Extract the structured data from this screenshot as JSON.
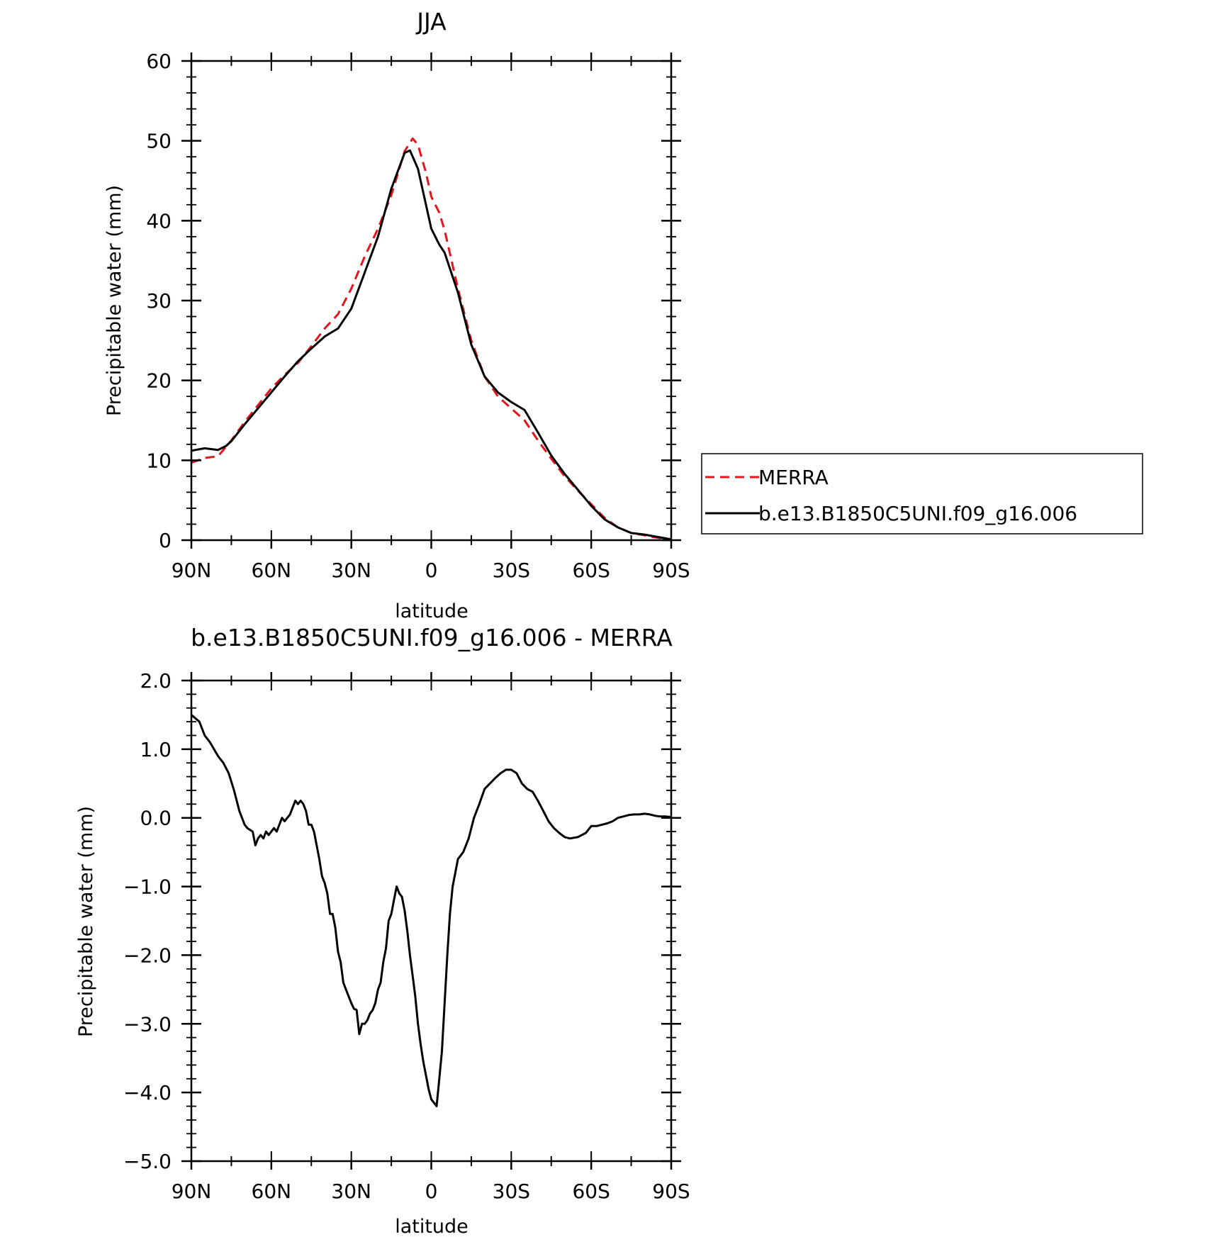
{
  "chart_data": [
    {
      "type": "line",
      "title": "JJA",
      "xlabel": "latitude",
      "ylabel": "Precipitable water (mm)",
      "x_ticks": [
        90,
        60,
        30,
        0,
        -30,
        -60,
        -90
      ],
      "x_tick_labels": [
        "90N",
        "60N",
        "30N",
        "0",
        "30S",
        "60S",
        "90S"
      ],
      "xlim": [
        90,
        -90
      ],
      "ylim": [
        0,
        60
      ],
      "y_ticks": [
        0,
        10,
        20,
        30,
        40,
        50,
        60
      ],
      "y_tick_labels": [
        "0",
        "10",
        "20",
        "30",
        "40",
        "50",
        "60"
      ],
      "grid": false,
      "legend": "right",
      "series": [
        {
          "name": "MERRA",
          "color": "#e8141b",
          "style": "dashed",
          "x": [
            90,
            85,
            80,
            75,
            70,
            65,
            60,
            55,
            50,
            45,
            40,
            35,
            30,
            25,
            20,
            15,
            10,
            7,
            5,
            2,
            0,
            -3,
            -5,
            -10,
            -15,
            -20,
            -25,
            -30,
            -35,
            -40,
            -45,
            -50,
            -55,
            -60,
            -65,
            -70,
            -75,
            -80,
            -85,
            -90
          ],
          "values": [
            9.7,
            10.3,
            10.5,
            12.5,
            14.8,
            16.9,
            19.0,
            20.7,
            22.2,
            24.3,
            26.5,
            28.3,
            31.5,
            35.5,
            39.0,
            43.2,
            48.7,
            50.3,
            49.5,
            46.0,
            43.0,
            41.0,
            38.8,
            31.5,
            25.0,
            20.5,
            18.0,
            16.5,
            15.0,
            12.5,
            10.2,
            8.0,
            6.2,
            4.5,
            2.8,
            1.6,
            0.9,
            0.6,
            0.3,
            0.0
          ]
        },
        {
          "name": "b.e13.B1850C5UNI.f09_g16.006",
          "color": "#000000",
          "style": "solid",
          "x": [
            90,
            85,
            80,
            77,
            75,
            70,
            65,
            60,
            55,
            50,
            45,
            40,
            35,
            30,
            25,
            20,
            15,
            10,
            8,
            5,
            2,
            0,
            -3,
            -5,
            -10,
            -15,
            -20,
            -25,
            -30,
            -35,
            -40,
            -45,
            -50,
            -55,
            -60,
            -65,
            -70,
            -75,
            -80,
            -85,
            -90
          ],
          "values": [
            11.2,
            11.5,
            11.3,
            11.8,
            12.4,
            14.5,
            16.5,
            18.5,
            20.5,
            22.4,
            24.0,
            25.5,
            26.5,
            29.0,
            33.5,
            38.0,
            44.0,
            48.5,
            48.8,
            46.5,
            42.0,
            39.0,
            37.0,
            36.0,
            31.0,
            24.5,
            20.5,
            18.5,
            17.3,
            16.3,
            13.5,
            10.6,
            8.3,
            6.3,
            4.3,
            2.6,
            1.6,
            0.9,
            0.7,
            0.4,
            0.1
          ]
        }
      ]
    },
    {
      "type": "line",
      "title": "b.e13.B1850C5UNI.f09_g16.006 - MERRA",
      "xlabel": "latitude",
      "ylabel": "Precipitable water (mm)",
      "x_ticks": [
        90,
        60,
        30,
        0,
        -30,
        -60,
        -90
      ],
      "x_tick_labels": [
        "90N",
        "60N",
        "30N",
        "0",
        "30S",
        "60S",
        "90S"
      ],
      "xlim": [
        90,
        -90
      ],
      "ylim": [
        -5,
        2
      ],
      "y_ticks": [
        2,
        1,
        0,
        -1,
        -2,
        -3,
        -4,
        -5
      ],
      "y_tick_labels": [
        "2.0",
        "1.0",
        "0.0",
        "−1.0",
        "−2.0",
        "−3.0",
        "−4.0",
        "−5.0"
      ],
      "grid": false,
      "series": [
        {
          "color": "#000000",
          "style": "solid",
          "x": [
            90,
            87,
            85,
            83,
            80,
            78,
            76,
            74,
            72,
            70,
            69,
            67,
            66,
            65,
            64,
            63,
            62,
            61,
            60,
            59,
            58,
            57,
            56,
            55,
            54,
            53,
            52,
            51,
            50,
            49,
            48,
            47,
            46,
            45,
            44,
            43,
            42,
            41,
            40,
            39,
            38,
            37,
            36,
            35,
            34,
            33,
            32,
            31,
            30,
            29,
            28,
            27,
            26,
            25,
            24,
            23,
            22,
            21,
            20,
            19,
            18,
            17,
            16,
            15,
            14,
            13,
            12,
            11,
            10,
            9,
            8,
            7,
            6,
            5,
            4,
            3,
            2,
            1,
            0,
            -1,
            -2,
            -3,
            -4,
            -5,
            -6,
            -7,
            -8,
            -9,
            -10,
            -12,
            -14,
            -16,
            -18,
            -20,
            -22,
            -24,
            -26,
            -28,
            -30,
            -32,
            -34,
            -36,
            -38,
            -40,
            -42,
            -44,
            -46,
            -48,
            -50,
            -52,
            -55,
            -58,
            -60,
            -62,
            -64,
            -66,
            -68,
            -70,
            -72,
            -74,
            -76,
            -78,
            -80,
            -82,
            -84,
            -86,
            -88,
            -90
          ],
          "values": [
            1.5,
            1.4,
            1.2,
            1.1,
            0.9,
            0.8,
            0.65,
            0.4,
            0.1,
            -0.1,
            -0.15,
            -0.2,
            -0.4,
            -0.3,
            -0.25,
            -0.3,
            -0.2,
            -0.25,
            -0.2,
            -0.15,
            -0.2,
            -0.1,
            0.0,
            -0.05,
            0.0,
            0.05,
            0.15,
            0.25,
            0.2,
            0.25,
            0.2,
            0.1,
            -0.1,
            -0.1,
            -0.2,
            -0.4,
            -0.6,
            -0.85,
            -0.95,
            -1.1,
            -1.4,
            -1.4,
            -1.6,
            -1.95,
            -2.1,
            -2.4,
            -2.5,
            -2.6,
            -2.7,
            -2.78,
            -2.8,
            -3.15,
            -3.0,
            -3.0,
            -2.95,
            -2.85,
            -2.8,
            -2.7,
            -2.5,
            -2.4,
            -2.1,
            -1.9,
            -1.5,
            -1.4,
            -1.2,
            -1.0,
            -1.1,
            -1.15,
            -1.35,
            -1.65,
            -2.0,
            -2.3,
            -2.6,
            -3.0,
            -3.3,
            -3.55,
            -3.75,
            -3.95,
            -4.1,
            -4.15,
            -4.2,
            -3.8,
            -3.4,
            -2.7,
            -2.0,
            -1.4,
            -1.0,
            -0.8,
            -0.6,
            -0.5,
            -0.3,
            0.0,
            0.2,
            0.42,
            0.5,
            0.58,
            0.65,
            0.7,
            0.7,
            0.65,
            0.5,
            0.42,
            0.38,
            0.25,
            0.1,
            -0.05,
            -0.15,
            -0.22,
            -0.28,
            -0.3,
            -0.28,
            -0.22,
            -0.12,
            -0.12,
            -0.1,
            -0.08,
            -0.05,
            0.0,
            0.02,
            0.04,
            0.05,
            0.05,
            0.06,
            0.05,
            0.03,
            0.02,
            0.02,
            0.01
          ]
        }
      ]
    }
  ]
}
